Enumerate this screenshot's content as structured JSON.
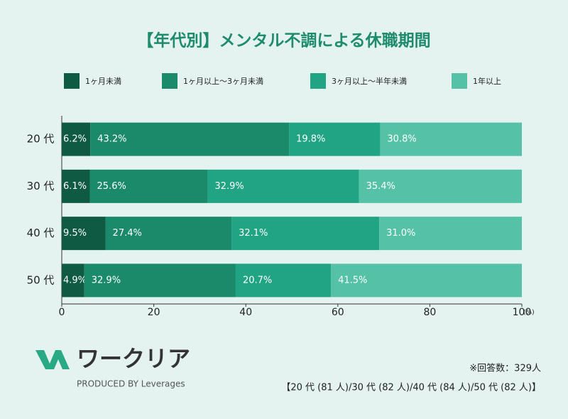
{
  "chart_data": {
    "type": "stacked-barh",
    "title": "【年代別】メンタル不調による休職期間",
    "categories": [
      "20 代",
      "30 代",
      "40 代",
      "50 代"
    ],
    "series": [
      {
        "name": "1ヶ月未満",
        "color": "#0f5a43",
        "values": [
          6.2,
          6.1,
          9.5,
          4.9
        ],
        "value_labels": [
          "6.2%",
          "6.1%",
          "9.5%",
          "4.9%"
        ]
      },
      {
        "name": "1ヶ月以上～3ヶ月未満",
        "color": "#1a8a6a",
        "values": [
          43.2,
          25.6,
          27.4,
          32.9
        ],
        "value_labels": [
          "43.2%",
          "25.6%",
          "27.4%",
          "32.9%"
        ]
      },
      {
        "name": "3ヶ月以上～半年未満",
        "color": "#21a483",
        "values": [
          19.8,
          32.9,
          32.1,
          20.7
        ],
        "value_labels": [
          "19.8%",
          "32.9%",
          "32.1%",
          "20.7%"
        ]
      },
      {
        "name": "1年以上",
        "color": "#55c2a8",
        "values": [
          30.8,
          35.4,
          31.0,
          41.5
        ],
        "value_labels": [
          "30.8%",
          "35.4%",
          "31.0%",
          "41.5%"
        ]
      }
    ],
    "xlim": [
      0,
      100
    ],
    "xticks": [
      0,
      20,
      40,
      60,
      80,
      100
    ],
    "xlabel": "(%)",
    "legend": "top"
  },
  "logo": {
    "name": "ワークリア",
    "tagline": "PRODUCED BY Leverages"
  },
  "footer": {
    "note": "※回答数：329人",
    "breakdown": "【20 代 (81 人)/30 代 (82 人)/40 代 (84 人)/50 代 (82 人)】"
  }
}
